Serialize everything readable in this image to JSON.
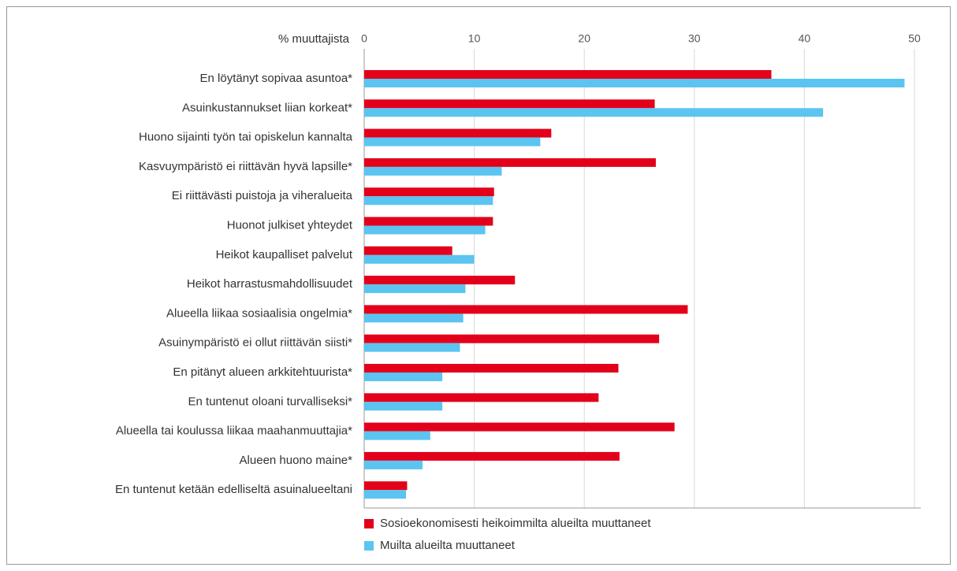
{
  "chart_data": {
    "type": "hbar",
    "x_label": "% muuttajista",
    "categories": [
      "En löytänyt sopivaa asuntoa*",
      "Asuinkustannukset liian korkeat*",
      "Huono sijainti työn tai opiskelun kannalta",
      "Kasvuympäristö ei riittävän hyvä lapsille*",
      "Ei riittävästi puistoja ja viheralueita",
      "Huonot julkiset yhteydet",
      "Heikot kaupalliset palvelut",
      "Heikot harrastusmahdollisuudet",
      "Alueella liikaa sosiaalisia ongelmia*",
      "Asuinympäristö ei ollut riittävän siisti*",
      "En pitänyt alueen arkkitehtuurista*",
      "En tuntenut oloani turvalliseksi*",
      "Alueella tai koulussa liikaa maahanmuuttajia*",
      "Alueen huono maine*",
      "En tuntenut ketään edelliseltä asuinalueeltani"
    ],
    "series": [
      {
        "name": "Sosioekonomisesti heikoimmilta alueilta muuttaneet",
        "color": "#e3001b",
        "values": [
          37,
          26.4,
          17,
          26.5,
          11.8,
          11.7,
          8,
          13.7,
          29.4,
          26.8,
          23.1,
          21.3,
          28.2,
          23.2,
          3.9
        ]
      },
      {
        "name": "Muilta alueilta muuttaneet",
        "color": "#5bc4f1",
        "values": [
          49.1,
          41.7,
          16,
          12.5,
          11.7,
          11,
          10,
          9.2,
          9,
          8.7,
          7.1,
          7.1,
          6,
          5.3,
          3.8
        ]
      }
    ],
    "xlim": [
      0,
      50
    ],
    "xticks": [
      0,
      10,
      20,
      30,
      40,
      50
    ],
    "grid": true
  }
}
